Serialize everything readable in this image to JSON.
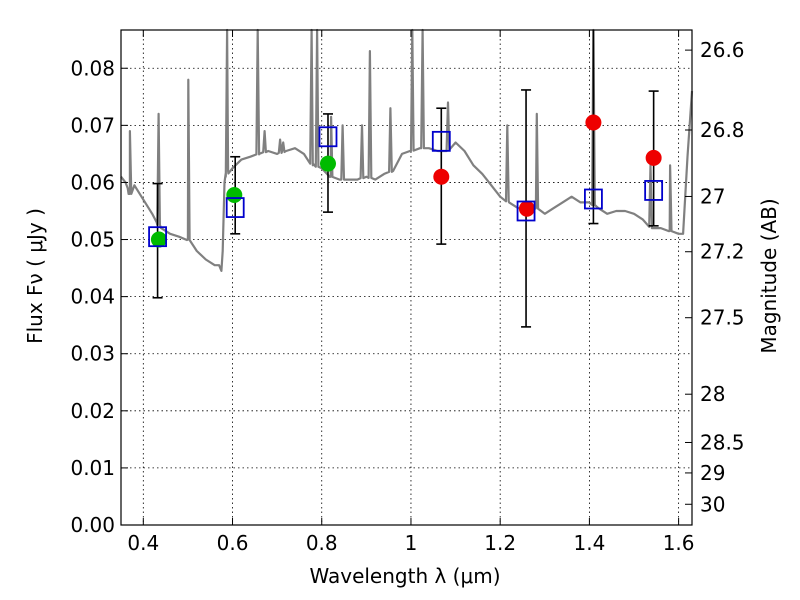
{
  "chart_data": {
    "type": "scatter",
    "xlabel": "Wavelength  λ (μm)",
    "ylabel": "Flux  Fν  ( μJy )",
    "ylabel_right": "Magnitude (AB)",
    "xlim": [
      0.35,
      1.63
    ],
    "ylim": [
      0.0,
      0.0867
    ],
    "x_ticks": [
      0.4,
      0.6,
      0.8,
      1.0,
      1.2,
      1.4,
      1.6
    ],
    "x_tick_labels": [
      "0.4",
      "0.6",
      "0.8",
      "1",
      "1.2",
      "1.4",
      "1.6"
    ],
    "y_ticks": [
      0.0,
      0.01,
      0.02,
      0.03,
      0.04,
      0.05,
      0.06,
      0.07,
      0.08
    ],
    "y_tick_labels": [
      "0.00",
      "0.01",
      "0.02",
      "0.03",
      "0.04",
      "0.05",
      "0.06",
      "0.07",
      "0.08"
    ],
    "right_ticks": [
      {
        "label": "26.6",
        "mag": 26.6
      },
      {
        "label": "26.8",
        "mag": 26.8
      },
      {
        "label": "27",
        "mag": 27.0
      },
      {
        "label": "27.2",
        "mag": 27.2
      },
      {
        "label": "27.5",
        "mag": 27.5
      },
      {
        "label": "28",
        "mag": 28.0
      },
      {
        "label": "28.5",
        "mag": 28.5
      },
      {
        "label": "29",
        "mag": 29.0
      },
      {
        "label": "30",
        "mag": 30.0
      }
    ],
    "grid": true,
    "colors": {
      "model": "#808080",
      "observed": "#0000cc",
      "green_points": "#00bb00",
      "red_points": "#ee0000",
      "errorbar": "#000000"
    },
    "series": [
      {
        "kind": "model_spectrum",
        "x": [
          0.35,
          0.36,
          0.365,
          0.37,
          0.38,
          0.4,
          0.42,
          0.43,
          0.44,
          0.46,
          0.48,
          0.5,
          0.52,
          0.54,
          0.56,
          0.57,
          0.575,
          0.578,
          0.582,
          0.585,
          0.59,
          0.6,
          0.62,
          0.64,
          0.66,
          0.68,
          0.7,
          0.72,
          0.74,
          0.76,
          0.78,
          0.8,
          0.82,
          0.84,
          0.86,
          0.88,
          0.9,
          0.92,
          0.94,
          0.96,
          0.98,
          1.0,
          1.02,
          1.04,
          1.06,
          1.08,
          1.1,
          1.12,
          1.14,
          1.16,
          1.18,
          1.2,
          1.22,
          1.24,
          1.26,
          1.28,
          1.3,
          1.32,
          1.34,
          1.36,
          1.38,
          1.4,
          1.42,
          1.44,
          1.46,
          1.48,
          1.5,
          1.52,
          1.54,
          1.56,
          1.58,
          1.6,
          1.61,
          1.62,
          1.63
        ],
        "y": [
          0.061,
          0.06,
          0.059,
          0.058,
          0.0595,
          0.057,
          0.0545,
          0.053,
          0.052,
          0.051,
          0.0505,
          0.05,
          0.048,
          0.0465,
          0.0455,
          0.0455,
          0.0445,
          0.048,
          0.06,
          0.061,
          0.062,
          0.0625,
          0.064,
          0.0645,
          0.065,
          0.0655,
          0.065,
          0.0655,
          0.066,
          0.065,
          0.063,
          0.0625,
          0.061,
          0.0605,
          0.0605,
          0.0605,
          0.061,
          0.0605,
          0.0615,
          0.062,
          0.065,
          0.0655,
          0.066,
          0.066,
          0.0655,
          0.0655,
          0.067,
          0.0655,
          0.063,
          0.0615,
          0.0595,
          0.0575,
          0.0565,
          0.0555,
          0.0555,
          0.0555,
          0.0545,
          0.0555,
          0.0565,
          0.0575,
          0.0565,
          0.0565,
          0.0555,
          0.0545,
          0.055,
          0.055,
          0.0545,
          0.0535,
          0.052,
          0.052,
          0.0515,
          0.051,
          0.051,
          0.0645,
          0.076
        ],
        "spikes": [
          {
            "x": 0.37,
            "y": 0.069
          },
          {
            "x": 0.4343,
            "y": 0.072
          },
          {
            "x": 0.5008,
            "y": 0.078
          },
          {
            "x": 0.5878,
            "y": 0.0867
          },
          {
            "x": 0.6565,
            "y": 0.0867
          },
          {
            "x": 0.6718,
            "y": 0.069
          },
          {
            "x": 0.7067,
            "y": 0.0675
          },
          {
            "x": 0.7136,
            "y": 0.067
          },
          {
            "x": 0.7772,
            "y": 0.0867
          },
          {
            "x": 0.7896,
            "y": 0.0867
          },
          {
            "x": 0.821,
            "y": 0.0715
          },
          {
            "x": 0.8468,
            "y": 0.07
          },
          {
            "x": 0.8902,
            "y": 0.07
          },
          {
            "x": 0.908,
            "y": 0.083
          },
          {
            "x": 0.954,
            "y": 0.073
          },
          {
            "x": 1.003,
            "y": 0.0867
          },
          {
            "x": 1.026,
            "y": 0.0867
          },
          {
            "x": 1.083,
            "y": 0.074
          },
          {
            "x": 1.216,
            "y": 0.07
          },
          {
            "x": 1.282,
            "y": 0.072
          },
          {
            "x": 1.409,
            "y": 0.0867
          },
          {
            "x": 1.537,
            "y": 0.063
          },
          {
            "x": 1.581,
            "y": 0.063
          }
        ]
      },
      {
        "kind": "observed",
        "name": "",
        "marker": "open-square",
        "points": [
          {
            "x": 0.432,
            "y": 0.0505,
            "yerr": [
              0.0398,
              0.0598
            ]
          },
          {
            "x": 0.606,
            "y": 0.0556,
            "yerr": [
              0.051,
              0.0645
            ]
          },
          {
            "x": 0.814,
            "y": 0.068,
            "yerr": [
              0.0548,
              0.072
            ]
          },
          {
            "x": 1.068,
            "y": 0.0672,
            "yerr": [
              0.0492,
              0.073
            ]
          },
          {
            "x": 1.258,
            "y": 0.055,
            "yerr": [
              0.0347,
              0.0762
            ]
          },
          {
            "x": 1.409,
            "y": 0.0571,
            "yerr": [
              0.0528,
              0.0867
            ]
          },
          {
            "x": 1.544,
            "y": 0.0586,
            "yerr": [
              0.0524,
              0.076
            ]
          }
        ]
      },
      {
        "kind": "model_green",
        "name": "",
        "marker": "circle",
        "points": [
          {
            "x": 0.435,
            "y": 0.05
          },
          {
            "x": 0.604,
            "y": 0.0578
          },
          {
            "x": 0.814,
            "y": 0.0633
          }
        ]
      },
      {
        "kind": "model_red",
        "name": "",
        "marker": "circle",
        "points": [
          {
            "x": 1.068,
            "y": 0.061
          },
          {
            "x": 1.26,
            "y": 0.0554
          },
          {
            "x": 1.409,
            "y": 0.0705
          },
          {
            "x": 1.544,
            "y": 0.0643
          }
        ]
      }
    ]
  }
}
